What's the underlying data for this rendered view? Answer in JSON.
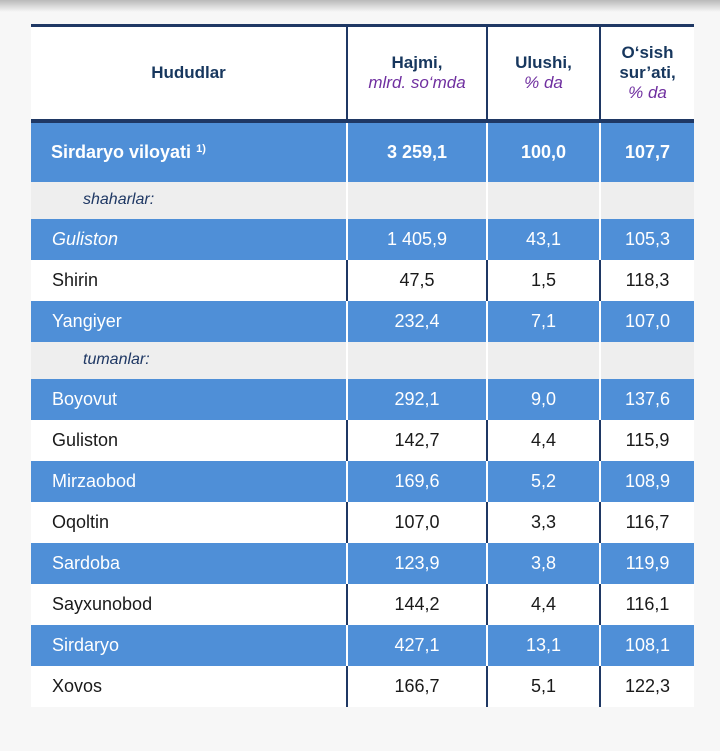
{
  "table": {
    "headers": {
      "region": "Hududlar",
      "volume": "Hajmi,",
      "volume_unit": "mlrd. so‘mda",
      "share": "Ulushi,",
      "share_unit": "% da",
      "growth": "O‘sish sur’ati,",
      "growth_unit": "% da"
    },
    "total": {
      "name": "Sirdaryo viloyati",
      "footnote": "1)",
      "volume": "3 259,1",
      "share": "100,0",
      "growth": "107,7"
    },
    "cities_label": "shaharlar:",
    "cities": [
      {
        "name": "Guliston",
        "volume": "1 405,9",
        "share": "43,1",
        "growth": "105,3"
      },
      {
        "name": "Shirin",
        "volume": "47,5",
        "share": "1,5",
        "growth": "118,3"
      },
      {
        "name": "Yangiyer",
        "volume": "232,4",
        "share": "7,1",
        "growth": "107,0"
      }
    ],
    "districts_label": "tumanlar:",
    "districts": [
      {
        "name": "Boyovut",
        "volume": "292,1",
        "share": "9,0",
        "growth": "137,6"
      },
      {
        "name": "Guliston",
        "volume": "142,7",
        "share": "4,4",
        "growth": "115,9"
      },
      {
        "name": "Mirzaobod",
        "volume": "169,6",
        "share": "5,2",
        "growth": "108,9"
      },
      {
        "name": "Oqoltin",
        "volume": "107,0",
        "share": "3,3",
        "growth": "116,7"
      },
      {
        "name": "Sardoba",
        "volume": "123,9",
        "share": "3,8",
        "growth": "119,9"
      },
      {
        "name": "Sayxunobod",
        "volume": "144,2",
        "share": "4,4",
        "growth": "116,1"
      },
      {
        "name": "Sirdaryo",
        "volume": "427,1",
        "share": "13,1",
        "growth": "108,1"
      },
      {
        "name": "Xovos",
        "volume": "166,7",
        "share": "5,1",
        "growth": "122,3"
      }
    ]
  }
}
